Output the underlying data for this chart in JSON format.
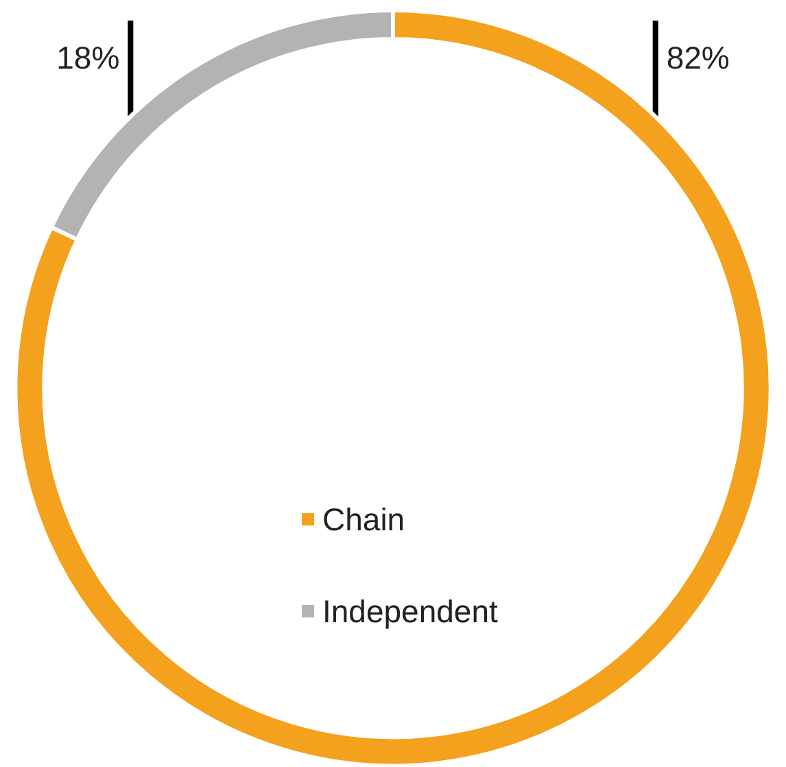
{
  "chart_data": {
    "type": "donut",
    "categories": [
      "Chain",
      "Independent"
    ],
    "values": [
      82,
      18
    ],
    "colors": [
      "#f4a11d",
      "#b3b3b3"
    ],
    "legend": "bottom",
    "value_labels": [
      "82%",
      "18%"
    ]
  }
}
